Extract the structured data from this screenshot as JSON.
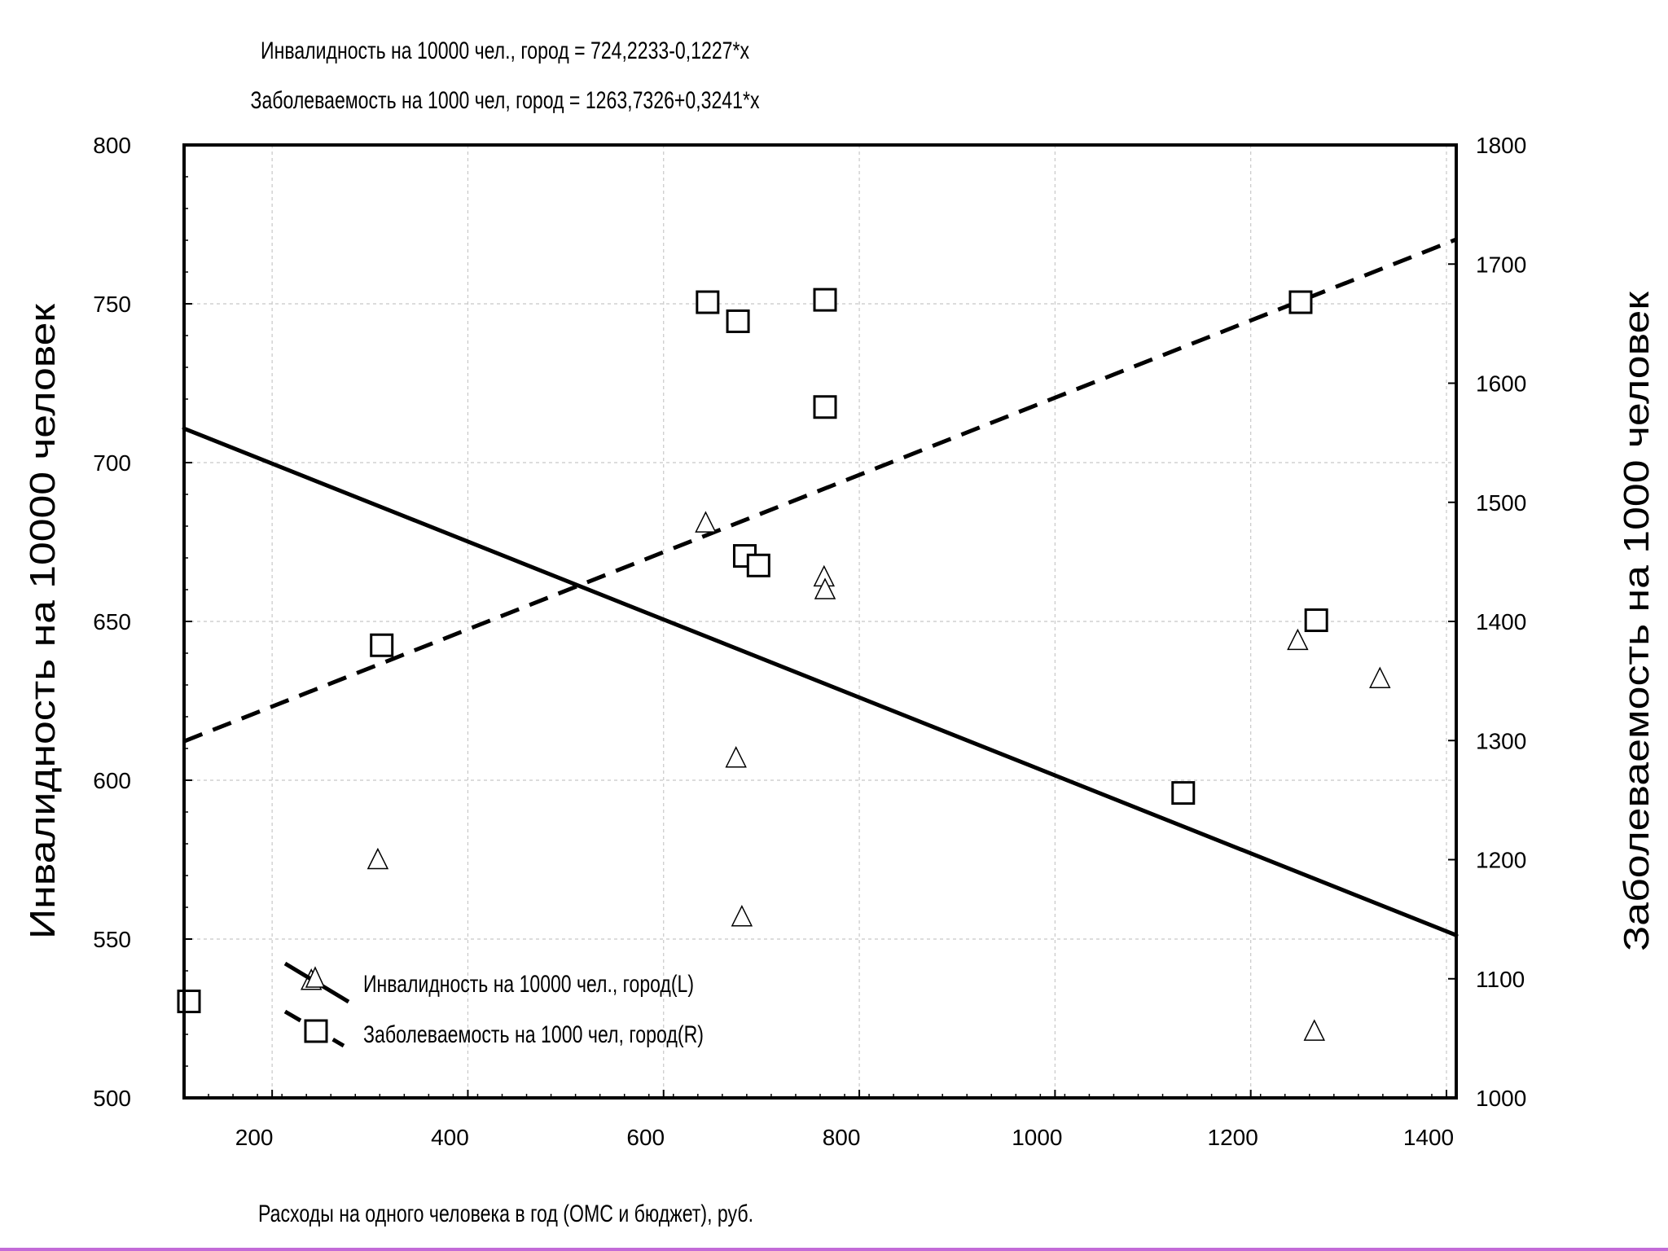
{
  "chart_data": {
    "type": "scatter",
    "title_lines": [
      "Инвалидность на 10000 чел., город = 724,2233-0,1227*x",
      "Заболеваемость на 1000 чел, город = 1263,7326+0,3241*x"
    ],
    "xlabel": "Расходы на одного человека в год (ОМС и бюджет), руб.",
    "ylabel_left": "Инвалидность на 10000 человек",
    "ylabel_right": "Заболеваемость на 1000 человек",
    "xlim": [
      110,
      1410
    ],
    "ylim_left": [
      500,
      800
    ],
    "ylim_right": [
      1000,
      1800
    ],
    "x_ticks": [
      200,
      400,
      600,
      800,
      1000,
      1200,
      1400
    ],
    "y_ticks_left": [
      500,
      550,
      600,
      650,
      700,
      750,
      800
    ],
    "y_ticks_right": [
      1000,
      1100,
      1200,
      1300,
      1400,
      1500,
      1600,
      1700,
      1800
    ],
    "grid": true,
    "legend_position": "bottom-left",
    "series": [
      {
        "name": "Инвалидность на 10000 чел., город(L)",
        "axis": "left",
        "marker": "triangle",
        "fit_line": "solid",
        "fit": {
          "intercept": 724.2233,
          "slope": -0.1227
        },
        "points": [
          [
            240,
            537
          ],
          [
            308,
            575
          ],
          [
            643,
            681
          ],
          [
            674,
            607
          ],
          [
            680,
            557
          ],
          [
            764,
            664
          ],
          [
            765,
            660
          ],
          [
            1248,
            644
          ],
          [
            1265,
            521
          ],
          [
            1332,
            632
          ]
        ]
      },
      {
        "name": "Заболеваемость на 1000 чел, город(R)",
        "axis": "right",
        "marker": "square",
        "fit_line": "dashed",
        "fit": {
          "intercept": 1263.7326,
          "slope": 0.3241
        },
        "points": [
          [
            115,
            1081
          ],
          [
            312,
            1380
          ],
          [
            645,
            1668
          ],
          [
            676,
            1652
          ],
          [
            683,
            1455
          ],
          [
            697,
            1447
          ],
          [
            765,
            1670
          ],
          [
            765,
            1580
          ],
          [
            1131,
            1256
          ],
          [
            1251,
            1668
          ],
          [
            1267,
            1401
          ]
        ]
      }
    ]
  }
}
